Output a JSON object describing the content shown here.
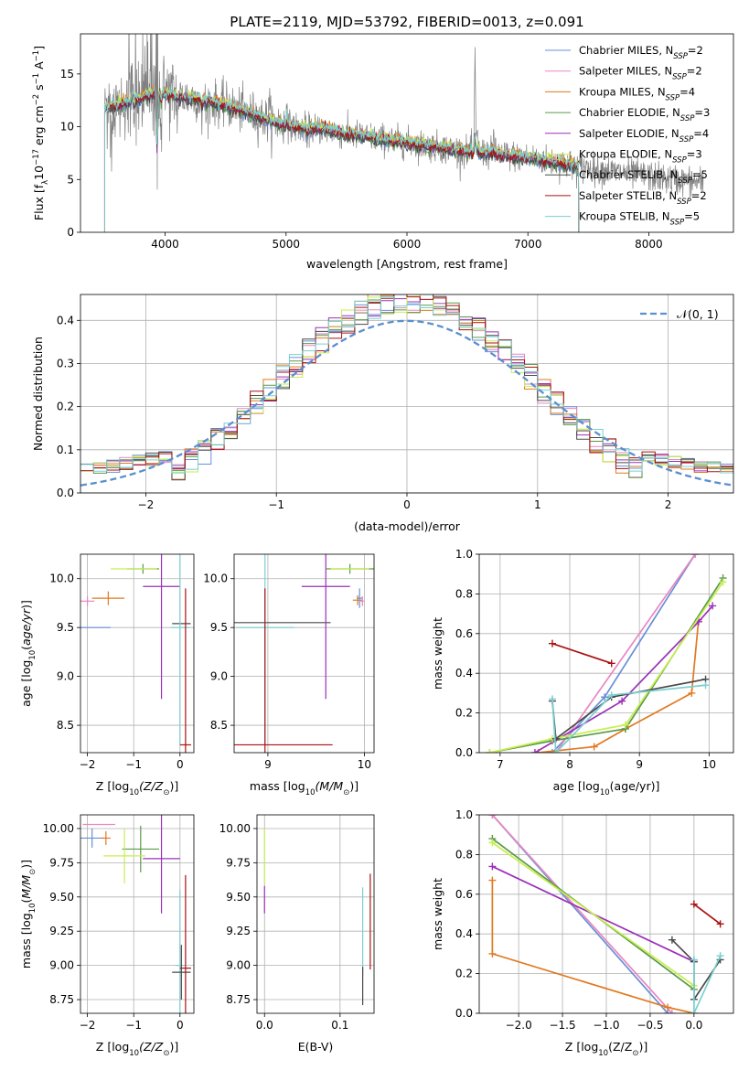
{
  "title": "PLATE=2119, MJD=53792, FIBERID=0013, z=0.091",
  "colors": {
    "Chabrier MILES": "#6a8fd8",
    "Salpeter MILES": "#e887c0",
    "Kroupa MILES": "#e07a22",
    "Chabrier ELODIE": "#5a9a48",
    "Salpeter ELODIE": "#9b30b8",
    "Kroupa ELODIE": "#c8ee50",
    "Chabrier STELIB": "#4a4a4a",
    "Salpeter STELIB": "#aa1111",
    "Kroupa STELIB": "#7acfd0",
    "data": "#808080",
    "gauss": "#5a8fd0"
  },
  "chart_data": [
    {
      "id": "spectrum",
      "type": "line",
      "xlabel": "wavelength [Angstrom, rest frame]",
      "ylabel": "Flux [f",
      "ylabel_sub": "λ",
      "ylabel_rest": "10",
      "ylabel_sup1": "−17",
      "ylabel_mid": " erg cm",
      "ylabel_sup2": "−2",
      "ylabel_mid2": " s",
      "ylabel_sup3": "−1",
      "ylabel_mid3": " A",
      "ylabel_sup4": "−1",
      "ylabel_end": "]",
      "xlim": [
        3300,
        8700
      ],
      "ylim": [
        0,
        18.8
      ],
      "xticks": [
        4000,
        5000,
        6000,
        7000,
        8000
      ],
      "yticks": [
        0,
        5,
        10,
        15
      ],
      "legend_position": "top-right",
      "legend": [
        {
          "name": "Chabrier MILES",
          "nssp": "2"
        },
        {
          "name": "Salpeter MILES",
          "nssp": "2"
        },
        {
          "name": "Kroupa MILES",
          "nssp": "4"
        },
        {
          "name": "Chabrier ELODIE",
          "nssp": "3"
        },
        {
          "name": "Salpeter ELODIE",
          "nssp": "4"
        },
        {
          "name": "Kroupa ELODIE",
          "nssp": "3"
        },
        {
          "name": "Chabrier STELIB",
          "nssp": "5"
        },
        {
          "name": "Salpeter STELIB",
          "nssp": "2"
        },
        {
          "name": "Kroupa STELIB",
          "nssp": "5"
        }
      ],
      "legend_prefix": "N",
      "legend_sub": "SSP",
      "continuum": [
        [
          3500,
          11.8
        ],
        [
          3700,
          12.3
        ],
        [
          3800,
          12.7
        ],
        [
          3900,
          13.2
        ],
        [
          4000,
          13.1
        ],
        [
          4100,
          12.9
        ],
        [
          4300,
          12.6
        ],
        [
          4500,
          12.0
        ],
        [
          4700,
          11.3
        ],
        [
          4900,
          10.4
        ],
        [
          5100,
          9.9
        ],
        [
          5300,
          9.8
        ],
        [
          5500,
          9.3
        ],
        [
          5700,
          9.0
        ],
        [
          5900,
          8.7
        ],
        [
          6100,
          8.3
        ],
        [
          6300,
          8.0
        ],
        [
          6500,
          7.6
        ],
        [
          6700,
          7.5
        ],
        [
          6900,
          7.2
        ],
        [
          7100,
          6.9
        ],
        [
          7300,
          6.5
        ],
        [
          7420,
          6.2
        ],
        [
          7600,
          5.9
        ],
        [
          7800,
          5.6
        ],
        [
          8000,
          5.3
        ],
        [
          8200,
          5.0
        ],
        [
          8450,
          4.7
        ]
      ],
      "lines": [
        [
          3727,
          4
        ],
        [
          3934,
          -5
        ],
        [
          3968,
          -4
        ],
        [
          4102,
          -2
        ],
        [
          4304,
          -3
        ],
        [
          4340,
          -2
        ],
        [
          4861,
          2
        ],
        [
          5007,
          3
        ],
        [
          5175,
          -2
        ],
        [
          5892,
          -1.5
        ],
        [
          6563,
          9
        ],
        [
          6583,
          3
        ],
        [
          6717,
          2
        ]
      ]
    },
    {
      "id": "residuals",
      "type": "histogram",
      "xlabel": "(data-model)/error",
      "ylabel": "Normed distribution",
      "xlim": [
        -2.5,
        2.5
      ],
      "ylim": [
        0,
        0.46
      ],
      "xticks": [
        -2,
        -1,
        0,
        1,
        2
      ],
      "yticks": [
        0.0,
        0.1,
        0.2,
        0.3,
        0.4
      ],
      "legend_position": "top-right",
      "gauss_label": "𝒩(0, 1)",
      "bins": 50
    },
    {
      "id": "age-vs-Z",
      "type": "error-bars",
      "xlabel": "Z [log",
      "xlabel_sub": "10",
      "xlabel_rest": "(Z/Z",
      "xlabel_sub2": "⊙",
      "xlabel_end": ")]",
      "ylabel": "age  [log",
      "ylabel_sub": "10",
      "ylabel_rest": "(age/yr)]",
      "xlim": [
        -2.15,
        0.3
      ],
      "ylim": [
        8.22,
        10.25
      ],
      "xticks": [
        -2,
        -1,
        0
      ],
      "yticks": [
        8.5,
        9.0,
        9.5,
        10.0
      ],
      "points": [
        {
          "series": "Chabrier MILES",
          "x": -1.85,
          "y": 9.5,
          "xerr": 0.35,
          "yerr": 0
        },
        {
          "series": "Salpeter MILES",
          "x": -2.0,
          "y": 9.77,
          "xerr": 0.15,
          "yerr": 0.05
        },
        {
          "series": "Kroupa MILES",
          "x": -1.55,
          "y": 9.8,
          "xerr": 0.35,
          "yerr": 0.07
        },
        {
          "series": "Chabrier ELODIE",
          "x": -0.8,
          "y": 10.1,
          "xerr": 0.35,
          "yerr": 0.05
        },
        {
          "series": "Kroupa ELODIE",
          "x": -1.0,
          "y": 10.1,
          "xerr": 0.5,
          "yerr": 0
        },
        {
          "series": "Salpeter ELODIE",
          "x": -0.4,
          "y": 9.92,
          "xerr": 0.4,
          "yerr": 1.15
        },
        {
          "series": "Chabrier STELIB",
          "x": 0.03,
          "y": 9.54,
          "xerr": 0.2,
          "yerr": 0.0
        },
        {
          "series": "Kroupa STELIB",
          "x": 0.0,
          "y": 9.5,
          "xerr": 0.2,
          "yerr": 1.2
        },
        {
          "series": "Salpeter STELIB",
          "x": 0.12,
          "y": 8.3,
          "xerr": 0.12,
          "yerr": 1.6
        }
      ]
    },
    {
      "id": "age-vs-mass",
      "type": "error-bars",
      "xlabel": "mass [log",
      "xlabel_sub": "10",
      "xlabel_rest": "(M/M",
      "xlabel_sub2": "⊙",
      "xlabel_end": ")]",
      "xlim": [
        8.65,
        10.1
      ],
      "ylim": [
        8.22,
        10.25
      ],
      "xticks": [
        9,
        10
      ],
      "yticks": [
        8.5,
        9.0,
        9.5,
        10.0
      ],
      "points": [
        {
          "series": "Chabrier STELIB",
          "x": 9.1,
          "y": 9.55,
          "xerr": 0.55,
          "yerr": 0
        },
        {
          "series": "Kroupa STELIB",
          "x": 8.97,
          "y": 9.5,
          "xerr": 0.3,
          "yerr": 1.2
        },
        {
          "series": "Salpeter STELIB",
          "x": 8.97,
          "y": 8.3,
          "xerr": 0.7,
          "yerr": 1.6
        },
        {
          "series": "Salpeter ELODIE",
          "x": 9.6,
          "y": 9.92,
          "xerr": 0.25,
          "yerr": 1.15
        },
        {
          "series": "Chabrier ELODIE",
          "x": 9.85,
          "y": 10.1,
          "xerr": 0.25,
          "yerr": 0.05
        },
        {
          "series": "Kroupa ELODIE",
          "x": 9.85,
          "y": 10.1,
          "xerr": 0.2,
          "yerr": 0
        },
        {
          "series": "Kroupa MILES",
          "x": 9.93,
          "y": 9.78,
          "xerr": 0.05,
          "yerr": 0.05
        },
        {
          "series": "Salpeter MILES",
          "x": 9.98,
          "y": 9.77,
          "xerr": 0.02,
          "yerr": 0.05
        },
        {
          "series": "Chabrier MILES",
          "x": 9.95,
          "y": 9.8,
          "xerr": 0.03,
          "yerr": 0.1
        }
      ]
    },
    {
      "id": "massweight-vs-age",
      "type": "line",
      "xlabel": "age  [log",
      "xlabel_sub": "10",
      "xlabel_rest": "(age/yr)]",
      "ylabel": "mass weight",
      "xlim": [
        6.7,
        10.35
      ],
      "ylim": [
        0,
        1.0
      ],
      "xticks": [
        7,
        8,
        9,
        10
      ],
      "yticks": [
        0.0,
        0.2,
        0.4,
        0.6,
        0.8,
        1.0
      ],
      "series": [
        {
          "name": "Chabrier MILES",
          "points": [
            [
              7.75,
              0.0
            ],
            [
              8.5,
              0.28
            ],
            [
              9.8,
              1.0
            ]
          ]
        },
        {
          "name": "Salpeter MILES",
          "points": [
            [
              7.8,
              0.0
            ],
            [
              9.8,
              1.0
            ]
          ]
        },
        {
          "name": "Kroupa MILES",
          "points": [
            [
              7.55,
              0.0
            ],
            [
              8.35,
              0.03
            ],
            [
              8.8,
              0.12
            ],
            [
              9.75,
              0.3
            ],
            [
              9.85,
              0.67
            ]
          ]
        },
        {
          "name": "Chabrier ELODIE",
          "points": [
            [
              6.85,
              0.0
            ],
            [
              7.75,
              0.06
            ],
            [
              8.8,
              0.12
            ],
            [
              10.2,
              0.88
            ]
          ]
        },
        {
          "name": "Salpeter ELODIE",
          "points": [
            [
              7.5,
              0.0
            ],
            [
              8.75,
              0.26
            ],
            [
              9.85,
              0.66
            ],
            [
              10.05,
              0.74
            ]
          ]
        },
        {
          "name": "Kroupa ELODIE",
          "points": [
            [
              6.85,
              0.0
            ],
            [
              7.75,
              0.07
            ],
            [
              8.8,
              0.14
            ],
            [
              10.2,
              0.86
            ]
          ]
        },
        {
          "name": "Chabrier STELIB",
          "points": [
            [
              7.75,
              0.26
            ],
            [
              7.8,
              0.07
            ],
            [
              8.6,
              0.28
            ],
            [
              9.95,
              0.37
            ]
          ]
        },
        {
          "name": "Salpeter STELIB",
          "points": [
            [
              7.75,
              0.55
            ],
            [
              8.6,
              0.45
            ]
          ]
        },
        {
          "name": "Kroupa STELIB",
          "points": [
            [
              7.75,
              0.27
            ],
            [
              7.8,
              0.0
            ],
            [
              8.6,
              0.29
            ],
            [
              9.95,
              0.34
            ]
          ]
        }
      ]
    },
    {
      "id": "mass-vs-Z",
      "type": "error-bars",
      "xlabel": "Z [log",
      "xlabel_sub": "10",
      "xlabel_rest": "(Z/Z",
      "xlabel_sub2": "⊙",
      "xlabel_end": ")]",
      "ylabel": "mass [log",
      "ylabel_sub": "10",
      "ylabel_rest": "(M/M",
      "ylabel_sub2": "⊙",
      "ylabel_end": ")]",
      "xlim": [
        -2.15,
        0.3
      ],
      "ylim": [
        8.65,
        10.1
      ],
      "xticks": [
        -2,
        -1,
        0
      ],
      "yticks": [
        8.75,
        9.0,
        9.25,
        9.5,
        9.75,
        10.0
      ],
      "points": [
        {
          "series": "Chabrier MILES",
          "x": -1.9,
          "y": 9.93,
          "xerr": 0.25,
          "yerr": 0.07
        },
        {
          "series": "Salpeter MILES",
          "x": -1.75,
          "y": 10.03,
          "xerr": 0.35,
          "yerr": 0.0
        },
        {
          "series": "Kroupa MILES",
          "x": -1.6,
          "y": 9.93,
          "xerr": 0.1,
          "yerr": 0.05
        },
        {
          "series": "Chabrier ELODIE",
          "x": -0.85,
          "y": 9.85,
          "xerr": 0.4,
          "yerr": 0.17
        },
        {
          "series": "Kroupa ELODIE",
          "x": -1.2,
          "y": 9.8,
          "xerr": 0.45,
          "yerr": 0.2
        },
        {
          "series": "Salpeter ELODIE",
          "x": -0.4,
          "y": 9.78,
          "xerr": 0.4,
          "yerr": 0.4
        },
        {
          "series": "Kroupa STELIB",
          "x": 0.0,
          "y": 9.0,
          "xerr": 0.1,
          "yerr": 0.55
        },
        {
          "series": "Chabrier STELIB",
          "x": 0.03,
          "y": 8.95,
          "xerr": 0.2,
          "yerr": 0.2
        },
        {
          "series": "Salpeter STELIB",
          "x": 0.12,
          "y": 8.98,
          "xerr": 0.12,
          "yerr": 0.68
        }
      ]
    },
    {
      "id": "mass-vs-ebv",
      "type": "error-bars",
      "xlabel": "E(B-V)",
      "xlim": [
        -0.01,
        0.145
      ],
      "ylim": [
        8.65,
        10.1
      ],
      "xticks": [
        0.0,
        0.1
      ],
      "yticks": [
        8.75,
        9.0,
        9.25,
        9.5,
        9.75,
        10.0
      ],
      "points": [
        {
          "series": "Kroupa ELODIE",
          "x": 0.0,
          "y": 9.8,
          "xerr": 0,
          "yerr": 0.2
        },
        {
          "series": "Salpeter ELODIE",
          "x": 0.0,
          "y": 9.48,
          "xerr": 0,
          "yerr": 0.1
        },
        {
          "series": "Kroupa STELIB",
          "x": 0.13,
          "y": 9.25,
          "xerr": 0,
          "yerr": 0.32
        },
        {
          "series": "Chabrier STELIB",
          "x": 0.13,
          "y": 8.85,
          "xerr": 0,
          "yerr": 0.14
        },
        {
          "series": "Salpeter STELIB",
          "x": 0.14,
          "y": 9.32,
          "xerr": 0,
          "yerr": 0.35
        }
      ]
    },
    {
      "id": "massweight-vs-Z",
      "type": "line",
      "xlabel": "Z [log",
      "xlabel_sub": "10",
      "xlabel_rest": "(Z/Z",
      "xlabel_sub2": "⊙",
      "xlabel_end": ")]",
      "ylabel": "mass weight",
      "xlim": [
        -2.45,
        0.45
      ],
      "ylim": [
        0,
        1.0
      ],
      "xticks": [
        -2.0,
        -1.5,
        -1.0,
        -0.5,
        0.0
      ],
      "yticks": [
        0.0,
        0.2,
        0.4,
        0.6,
        0.8,
        1.0
      ],
      "series": [
        {
          "name": "Chabrier MILES",
          "points": [
            [
              -2.3,
              1.0
            ],
            [
              -0.3,
              0.0
            ]
          ]
        },
        {
          "name": "Salpeter MILES",
          "points": [
            [
              -2.3,
              1.0
            ],
            [
              -0.25,
              0.0
            ]
          ]
        },
        {
          "name": "Kroupa MILES",
          "points": [
            [
              -2.3,
              0.67
            ],
            [
              -2.3,
              0.3
            ],
            [
              -0.3,
              0.03
            ],
            [
              0.0,
              0.0
            ]
          ]
        },
        {
          "name": "Chabrier ELODIE",
          "points": [
            [
              -2.3,
              0.88
            ],
            [
              0.0,
              0.12
            ]
          ]
        },
        {
          "name": "Salpeter ELODIE",
          "points": [
            [
              -2.3,
              0.74
            ],
            [
              0.0,
              0.26
            ]
          ]
        },
        {
          "name": "Kroupa ELODIE",
          "points": [
            [
              -2.3,
              0.86
            ],
            [
              0.0,
              0.14
            ]
          ]
        },
        {
          "name": "Chabrier STELIB",
          "points": [
            [
              -0.25,
              0.37
            ],
            [
              0.0,
              0.26
            ],
            [
              0.0,
              0.07
            ],
            [
              0.3,
              0.27
            ]
          ]
        },
        {
          "name": "Salpeter STELIB",
          "points": [
            [
              0.0,
              0.55
            ],
            [
              0.3,
              0.45
            ]
          ]
        },
        {
          "name": "Kroupa STELIB",
          "points": [
            [
              0.0,
              0.27
            ],
            [
              0.0,
              0.0
            ],
            [
              0.3,
              0.29
            ]
          ]
        }
      ]
    }
  ]
}
